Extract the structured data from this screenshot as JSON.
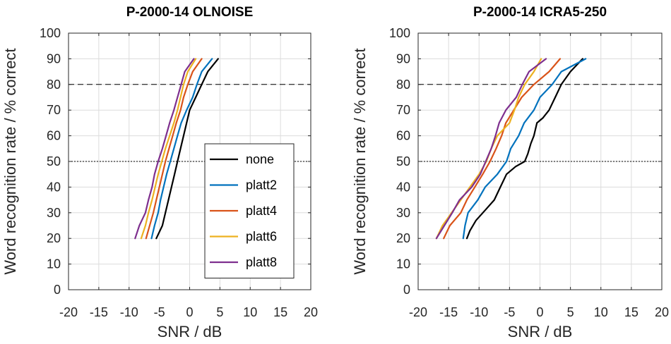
{
  "colors": {
    "none": "#000000",
    "platt2": "#0072BD",
    "platt4": "#D95319",
    "platt6": "#EDB120",
    "platt8": "#7E2F8E"
  },
  "chart_data": [
    {
      "type": "line",
      "title": "P-2000-14 OLNOISE",
      "xlabel": "SNR / dB",
      "ylabel": "Word recognition rate / % correct",
      "xlim": [
        -20,
        20
      ],
      "ylim": [
        0,
        100
      ],
      "xticks": [
        "-20",
        "-15",
        "-10",
        "-5",
        "0",
        "5",
        "10",
        "15",
        "20"
      ],
      "yticks": [
        "0",
        "10",
        "20",
        "30",
        "40",
        "50",
        "60",
        "70",
        "80",
        "90",
        "100"
      ],
      "grid": true,
      "reference_lines": [
        80,
        50
      ],
      "legend_position": "inside-right",
      "series": [
        {
          "name": "none",
          "color_key": "none",
          "points": [
            [
              -5.5,
              20
            ],
            [
              -4.5,
              25
            ],
            [
              -4,
              30
            ],
            [
              -3.5,
              35
            ],
            [
              -3,
              40
            ],
            [
              -2.5,
              45
            ],
            [
              -2,
              50
            ],
            [
              -1.5,
              55
            ],
            [
              -1,
              60
            ],
            [
              -0.5,
              65
            ],
            [
              0,
              70
            ],
            [
              1,
              75
            ],
            [
              2,
              80
            ],
            [
              3,
              85
            ],
            [
              4.7,
              90
            ]
          ]
        },
        {
          "name": "platt2",
          "color_key": "platt2",
          "points": [
            [
              -6.3,
              20
            ],
            [
              -5.8,
              25
            ],
            [
              -5.2,
              30
            ],
            [
              -4.8,
              35
            ],
            [
              -4.3,
              40
            ],
            [
              -3.8,
              45
            ],
            [
              -3.2,
              50
            ],
            [
              -2.6,
              55
            ],
            [
              -2,
              60
            ],
            [
              -1.4,
              65
            ],
            [
              -0.5,
              70
            ],
            [
              0.5,
              75
            ],
            [
              1.2,
              80
            ],
            [
              2,
              85
            ],
            [
              3.7,
              90
            ]
          ]
        },
        {
          "name": "platt4",
          "color_key": "platt4",
          "points": [
            [
              -7.2,
              20
            ],
            [
              -6.6,
              25
            ],
            [
              -6,
              30
            ],
            [
              -5.5,
              35
            ],
            [
              -5,
              40
            ],
            [
              -4.5,
              45
            ],
            [
              -4,
              50
            ],
            [
              -3.4,
              55
            ],
            [
              -2.8,
              60
            ],
            [
              -2.2,
              65
            ],
            [
              -1.5,
              70
            ],
            [
              -1,
              75
            ],
            [
              -0.3,
              80
            ],
            [
              0.5,
              85
            ],
            [
              2,
              90
            ]
          ]
        },
        {
          "name": "platt6",
          "color_key": "platt6",
          "points": [
            [
              -8,
              20
            ],
            [
              -7.3,
              25
            ],
            [
              -6.8,
              30
            ],
            [
              -6.2,
              35
            ],
            [
              -5.7,
              40
            ],
            [
              -5.2,
              45
            ],
            [
              -4.6,
              50
            ],
            [
              -4,
              55
            ],
            [
              -3.3,
              60
            ],
            [
              -2.6,
              65
            ],
            [
              -2,
              70
            ],
            [
              -1.5,
              75
            ],
            [
              -1,
              80
            ],
            [
              -0.3,
              85
            ],
            [
              1,
              90
            ]
          ]
        },
        {
          "name": "platt8",
          "color_key": "platt8",
          "points": [
            [
              -9,
              20
            ],
            [
              -8.3,
              25
            ],
            [
              -7.3,
              30
            ],
            [
              -6.8,
              35
            ],
            [
              -6.2,
              40
            ],
            [
              -5.8,
              45
            ],
            [
              -5.2,
              50
            ],
            [
              -4.5,
              55
            ],
            [
              -3.9,
              60
            ],
            [
              -3.3,
              65
            ],
            [
              -2.6,
              70
            ],
            [
              -2,
              75
            ],
            [
              -1.4,
              80
            ],
            [
              -0.8,
              85
            ],
            [
              0.7,
              90
            ]
          ]
        }
      ]
    },
    {
      "type": "line",
      "title": "P-2000-14 ICRA5-250",
      "xlabel": "SNR / dB",
      "ylabel": "Word recognition rate / % correct",
      "xlim": [
        -20,
        20
      ],
      "ylim": [
        0,
        100
      ],
      "xticks": [
        "-20",
        "-15",
        "-10",
        "-5",
        "0",
        "5",
        "10",
        "15",
        "20"
      ],
      "yticks": [
        "0",
        "10",
        "20",
        "30",
        "40",
        "50",
        "60",
        "70",
        "80",
        "90",
        "100"
      ],
      "grid": true,
      "reference_lines": [
        80,
        50
      ],
      "series": [
        {
          "name": "none",
          "color_key": "none",
          "points": [
            [
              -12,
              20
            ],
            [
              -11.5,
              23
            ],
            [
              -10.5,
              27
            ],
            [
              -9,
              31
            ],
            [
              -7.5,
              35
            ],
            [
              -6.5,
              40
            ],
            [
              -5.5,
              45
            ],
            [
              -4,
              48
            ],
            [
              -2.5,
              50
            ],
            [
              -2,
              53
            ],
            [
              -1.5,
              57
            ],
            [
              -1,
              60
            ],
            [
              -0.5,
              65
            ],
            [
              0.5,
              67
            ],
            [
              1.5,
              70
            ],
            [
              2.5,
              75
            ],
            [
              3.5,
              80
            ],
            [
              5,
              85
            ],
            [
              7,
              90
            ]
          ]
        },
        {
          "name": "platt2",
          "color_key": "platt2",
          "points": [
            [
              -12.6,
              20
            ],
            [
              -12.3,
              25
            ],
            [
              -11.8,
              30
            ],
            [
              -10.2,
              35
            ],
            [
              -9,
              40
            ],
            [
              -7,
              45
            ],
            [
              -5.5,
              50
            ],
            [
              -4.8,
              55
            ],
            [
              -3.5,
              60
            ],
            [
              -2.6,
              65
            ],
            [
              -1,
              70
            ],
            [
              0,
              75
            ],
            [
              2,
              80
            ],
            [
              3.5,
              85
            ],
            [
              7.5,
              90
            ]
          ]
        },
        {
          "name": "platt4",
          "color_key": "platt4",
          "points": [
            [
              -15.8,
              20
            ],
            [
              -14.8,
              25
            ],
            [
              -13,
              30
            ],
            [
              -12,
              35
            ],
            [
              -10.7,
              40
            ],
            [
              -9.4,
              45
            ],
            [
              -8.2,
              50
            ],
            [
              -7.2,
              55
            ],
            [
              -6.3,
              60
            ],
            [
              -5.6,
              65
            ],
            [
              -4.3,
              70
            ],
            [
              -3,
              75
            ],
            [
              -1,
              80
            ],
            [
              1.5,
              85
            ],
            [
              3.3,
              90
            ]
          ]
        },
        {
          "name": "platt6",
          "color_key": "platt6",
          "points": [
            [
              -17,
              20
            ],
            [
              -16,
              25
            ],
            [
              -14.5,
              30
            ],
            [
              -13,
              35
            ],
            [
              -11.5,
              40
            ],
            [
              -10,
              45
            ],
            [
              -8.8,
              50
            ],
            [
              -8,
              55
            ],
            [
              -7,
              60
            ],
            [
              -5,
              65
            ],
            [
              -4.2,
              70
            ],
            [
              -3.5,
              75
            ],
            [
              -2.5,
              80
            ],
            [
              -1,
              85
            ],
            [
              0.2,
              90
            ]
          ]
        },
        {
          "name": "platt8",
          "color_key": "platt8",
          "points": [
            [
              -17,
              20
            ],
            [
              -15.7,
              25
            ],
            [
              -14.4,
              30
            ],
            [
              -13.2,
              35
            ],
            [
              -11.2,
              40
            ],
            [
              -9.8,
              45
            ],
            [
              -8.9,
              50
            ],
            [
              -8,
              55
            ],
            [
              -7.3,
              60
            ],
            [
              -6.7,
              65
            ],
            [
              -5.6,
              70
            ],
            [
              -3.9,
              75
            ],
            [
              -2.9,
              80
            ],
            [
              -1.8,
              85
            ],
            [
              1,
              90
            ]
          ]
        }
      ]
    }
  ]
}
